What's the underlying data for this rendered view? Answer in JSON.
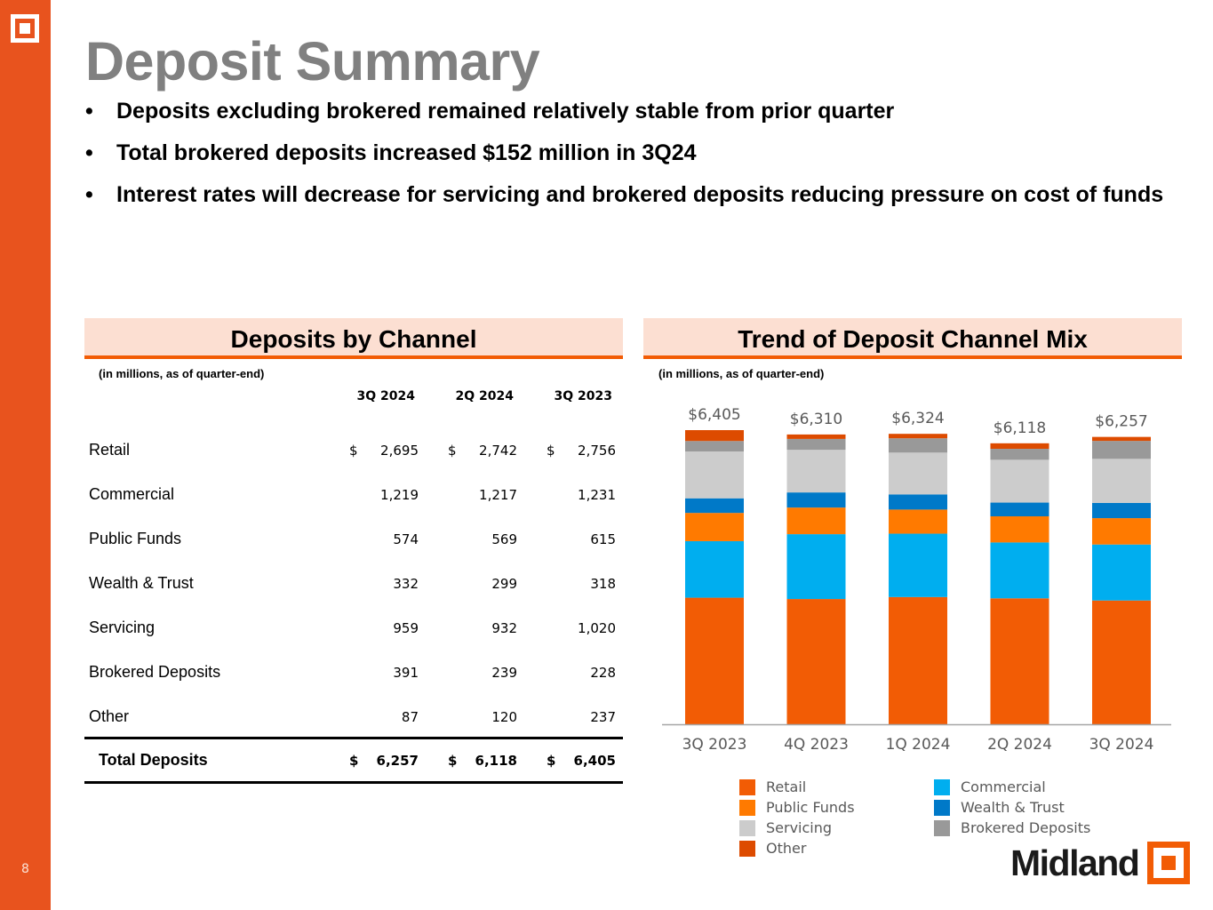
{
  "slide": {
    "page_number": "8",
    "title": "Deposit Summary",
    "bullets": [
      "Deposits excluding brokered remained relatively stable from prior quarter",
      "Total brokered deposits increased $152 million in 3Q24",
      "Interest rates will decrease for servicing and brokered deposits reducing pressure on cost of funds"
    ],
    "bullet_glyph": "•",
    "brand_name": "Midland",
    "colors": {
      "brand_orange": "#E8531E",
      "header_fill": "#FCDFD2",
      "header_rule": "#F25C05",
      "title_gray": "#808080"
    }
  },
  "table_panel": {
    "title": "Deposits by Channel",
    "note": "(in millions, as of quarter-end)",
    "columns": [
      "3Q 2024",
      "2Q 2024",
      "3Q 2023"
    ],
    "currency_symbol": "$",
    "rows": [
      {
        "label": "Retail",
        "values": [
          "2,695",
          "2,742",
          "2,756"
        ],
        "show_currency": true
      },
      {
        "label": "Commercial",
        "values": [
          "1,219",
          "1,217",
          "1,231"
        ],
        "show_currency": false
      },
      {
        "label": "Public Funds",
        "values": [
          "574",
          "569",
          "615"
        ],
        "show_currency": false
      },
      {
        "label": "Wealth & Trust",
        "values": [
          "332",
          "299",
          "318"
        ],
        "show_currency": false
      },
      {
        "label": "Servicing",
        "values": [
          "959",
          "932",
          "1,020"
        ],
        "show_currency": false
      },
      {
        "label": "Brokered Deposits",
        "values": [
          "391",
          "239",
          "228"
        ],
        "show_currency": false
      },
      {
        "label": "Other",
        "values": [
          "87",
          "120",
          "237"
        ],
        "show_currency": false
      }
    ],
    "total": {
      "label": "Total Deposits",
      "values": [
        "6,257",
        "6,118",
        "6,405"
      ]
    }
  },
  "chart_panel": {
    "title": "Trend of Deposit Channel Mix",
    "note": "(in millions, as of quarter-end)"
  },
  "chart_data": {
    "type": "bar",
    "stacked": true,
    "title": "Trend of Deposit Channel Mix",
    "subtitle": "(in millions, as of quarter-end)",
    "xlabel": "",
    "ylabel": "",
    "ylim": [
      0,
      6800
    ],
    "grid": false,
    "legend_position": "bottom",
    "categories": [
      "3Q 2023",
      "4Q 2023",
      "1Q 2024",
      "2Q 2024",
      "3Q 2024"
    ],
    "total_labels": [
      "$6,405",
      "$6,310",
      "$6,324",
      "$6,118",
      "$6,257"
    ],
    "totals": [
      6405,
      6310,
      6324,
      6118,
      6257
    ],
    "series": [
      {
        "name": "Retail",
        "color": "#F25C05",
        "values": [
          2756,
          2727,
          2770,
          2742,
          2695
        ]
      },
      {
        "name": "Commercial",
        "color": "#00AEEF",
        "values": [
          1231,
          1412,
          1380,
          1217,
          1219
        ]
      },
      {
        "name": "Public Funds",
        "color": "#FF7A00",
        "values": [
          615,
          580,
          525,
          569,
          574
        ]
      },
      {
        "name": "Wealth & Trust",
        "color": "#0079C8",
        "values": [
          318,
          329,
          330,
          299,
          332
        ]
      },
      {
        "name": "Servicing",
        "color": "#CCCCCC",
        "values": [
          1020,
          928,
          910,
          932,
          959
        ]
      },
      {
        "name": "Brokered Deposits",
        "color": "#999999",
        "values": [
          228,
          237,
          312,
          239,
          391
        ]
      },
      {
        "name": "Other",
        "color": "#DD4B00",
        "values": [
          237,
          97,
          97,
          120,
          87
        ]
      }
    ],
    "legend_order": [
      "Retail",
      "Commercial",
      "Public Funds",
      "Wealth & Trust",
      "Servicing",
      "Brokered Deposits",
      "Other"
    ]
  }
}
